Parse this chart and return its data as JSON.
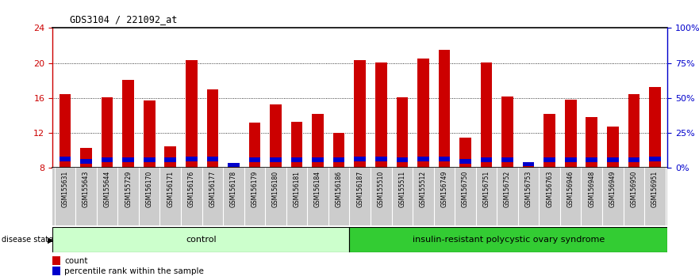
{
  "title": "GDS3104 / 221092_at",
  "samples": [
    "GSM155631",
    "GSM155643",
    "GSM155644",
    "GSM155729",
    "GSM156170",
    "GSM156171",
    "GSM156176",
    "GSM156177",
    "GSM156178",
    "GSM156179",
    "GSM156180",
    "GSM156181",
    "GSM156184",
    "GSM156186",
    "GSM156187",
    "GSM155510",
    "GSM155511",
    "GSM155512",
    "GSM156749",
    "GSM156750",
    "GSM156751",
    "GSM156752",
    "GSM156753",
    "GSM156763",
    "GSM156946",
    "GSM156948",
    "GSM156949",
    "GSM156950",
    "GSM156951"
  ],
  "red_values": [
    16.4,
    10.3,
    16.1,
    18.1,
    15.7,
    10.5,
    20.3,
    17.0,
    8.5,
    13.2,
    15.3,
    13.3,
    14.2,
    12.0,
    20.3,
    20.1,
    16.1,
    20.5,
    21.5,
    11.5,
    20.1,
    16.2,
    8.5,
    14.2,
    15.8,
    13.8,
    12.7,
    16.4,
    17.3
  ],
  "blue_heights": [
    0.5,
    0.5,
    0.5,
    0.5,
    0.5,
    0.5,
    0.5,
    0.5,
    0.5,
    0.5,
    0.5,
    0.5,
    0.5,
    0.5,
    0.5,
    0.5,
    0.5,
    0.5,
    0.5,
    0.5,
    0.5,
    0.5,
    0.5,
    0.5,
    0.5,
    0.5,
    0.5,
    0.5,
    0.5
  ],
  "blue_bottoms": [
    8.8,
    8.5,
    8.7,
    8.7,
    8.7,
    8.7,
    8.8,
    8.8,
    8.1,
    8.7,
    8.7,
    8.7,
    8.7,
    8.7,
    8.8,
    8.8,
    8.7,
    8.8,
    8.8,
    8.5,
    8.7,
    8.7,
    8.2,
    8.7,
    8.7,
    8.7,
    8.7,
    8.7,
    8.8
  ],
  "control_count": 14,
  "disease_count": 15,
  "ylim_left": [
    8,
    24
  ],
  "ylim_right": [
    0,
    100
  ],
  "yticks_left": [
    8,
    12,
    16,
    20,
    24
  ],
  "ytick_labels_left": [
    "8",
    "12",
    "16",
    "20",
    "24"
  ],
  "yticks_right": [
    0,
    25,
    50,
    75,
    100
  ],
  "ytick_labels_right": [
    "0%",
    "25%",
    "50%",
    "75%",
    "100%"
  ],
  "bar_color_red": "#cc0000",
  "bar_color_blue": "#0000cc",
  "control_bg": "#ccffcc",
  "disease_bg": "#33cc33",
  "xticklabel_bg": "#cccccc",
  "left_tick_color": "#cc0000",
  "right_tick_color": "#0000cc",
  "bar_width": 0.55
}
